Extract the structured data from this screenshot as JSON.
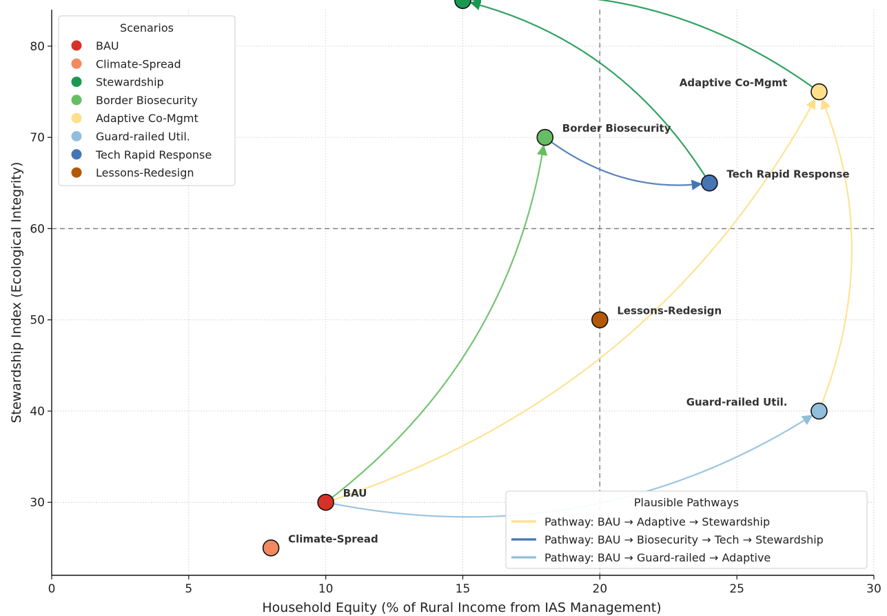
{
  "chart_data": {
    "type": "scatter",
    "xlabel": "Household Equity (% of Rural Income from IAS Management)",
    "ylabel": "Stewardship Index (Ecological Integrity)",
    "xlim": [
      0,
      30
    ],
    "ylim": [
      22,
      84
    ],
    "xticks": [
      0,
      5,
      10,
      15,
      20,
      25,
      30
    ],
    "yticks": [
      30,
      40,
      50,
      60,
      70,
      80
    ],
    "grid": true,
    "reference_lines": {
      "x": 20,
      "y": 60
    },
    "points": [
      {
        "name": "BAU",
        "x": 10,
        "y": 30,
        "color": "#d73027"
      },
      {
        "name": "Climate-Spread",
        "x": 8,
        "y": 25,
        "color": "#f4895f"
      },
      {
        "name": "Stewardship",
        "x": 15,
        "y": 85,
        "color": "#1a9850"
      },
      {
        "name": "Border Biosecurity",
        "x": 18,
        "y": 70,
        "color": "#66bd63"
      },
      {
        "name": "Adaptive Co-Mgmt",
        "x": 28,
        "y": 75,
        "color": "#fee08b"
      },
      {
        "name": "Guard-railed Util.",
        "x": 28,
        "y": 40,
        "color": "#91bfdb"
      },
      {
        "name": "Tech Rapid Response",
        "x": 24,
        "y": 65,
        "color": "#4575b4"
      },
      {
        "name": "Lessons-Redesign",
        "x": 20,
        "y": 50,
        "color": "#b35806"
      }
    ],
    "pathways": [
      {
        "name": "Pathway: BAU → Adaptive → Stewardship",
        "color": "#fee08b",
        "legend_color": "#fee08b",
        "segments": [
          {
            "from": [
              10,
              30
            ],
            "to": [
              28,
              75
            ],
            "color": "#fee08b"
          },
          {
            "from": [
              28,
              75
            ],
            "to": [
              15,
              85
            ],
            "color": "#1a9850"
          }
        ]
      },
      {
        "name": "Pathway: BAU → Biosecurity → Tech → Stewardship",
        "color": "#4575b4",
        "legend_color": "#4575b4",
        "segments": [
          {
            "from": [
              10,
              30
            ],
            "to": [
              18,
              70
            ],
            "color": "#66bd63"
          },
          {
            "from": [
              18,
              70
            ],
            "to": [
              24,
              65
            ],
            "color": "#4575b4"
          },
          {
            "from": [
              24,
              65
            ],
            "to": [
              15,
              85
            ],
            "color": "#1a9850"
          }
        ]
      },
      {
        "name": "Pathway: BAU → Guard-railed → Adaptive",
        "color": "#91bfdb",
        "legend_color": "#91bfdb",
        "segments": [
          {
            "from": [
              10,
              30
            ],
            "to": [
              28,
              40
            ],
            "color": "#91bfdb"
          },
          {
            "from": [
              28,
              40
            ],
            "to": [
              28,
              75
            ],
            "color": "#fee08b"
          }
        ]
      }
    ],
    "legend_scenarios": {
      "title": "Scenarios",
      "placement": "upper-left",
      "items": [
        "BAU",
        "Climate-Spread",
        "Stewardship",
        "Border Biosecurity",
        "Adaptive Co-Mgmt",
        "Guard-railed Util.",
        "Tech Rapid Response",
        "Lessons-Redesign"
      ]
    },
    "legend_pathways": {
      "title": "Plausible Pathways",
      "placement": "lower-right"
    }
  }
}
